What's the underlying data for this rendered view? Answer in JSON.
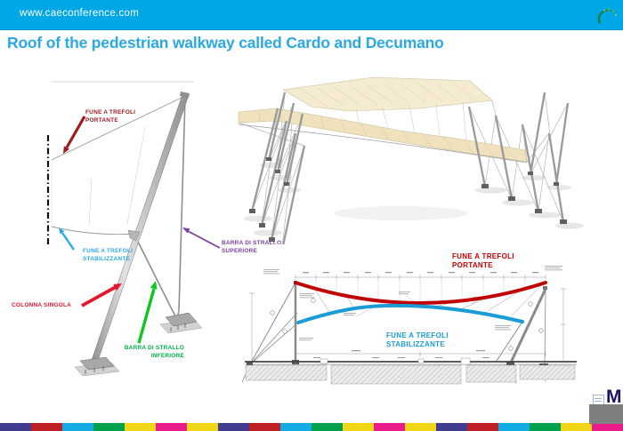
{
  "header": {
    "url": "www.caeconference.com",
    "bar_color": "#00A7E7",
    "logo": "green-swirl-leaf"
  },
  "title": {
    "text": "Roof of the pedestrian walkway called Cardo and Decumano",
    "color": "#2AA9E1"
  },
  "column_diagram": {
    "labels": {
      "fune_trefoli_portante": {
        "line1": "FUNE A TREFOLI",
        "line2": "PORTANTE",
        "color": "#9C1C20"
      },
      "fune_trefoli_stabilizzante": {
        "line1": "FUNE A TREFOLI",
        "line2": "STABILIZZANTE",
        "color": "#2BA9E0"
      },
      "colonna_singola": {
        "text": "COLONNA SINGOLA",
        "color": "#E4172E"
      },
      "barra_di_strallo_inferiore": {
        "line1": "BARRA DI STRALLO",
        "line2": "INFERIORE",
        "color": "#00B14C"
      },
      "barra_di_strallo_superiore": {
        "line1": "BARRA DI STRALLO",
        "line2": "SUPERIORE",
        "color": "#7A3FA3"
      }
    }
  },
  "section_drawing": {
    "labels": {
      "fune_trefoli_portante": {
        "line1": "FUNE A TREFOLI",
        "line2": "PORTANTE",
        "color": "#C00000"
      },
      "fune_trefoli_stabilizzante": {
        "line1": "FUNE A TREFOLI",
        "line2": "STABILIZZANTE",
        "color": "#1B9CD6"
      }
    },
    "cable_colors": {
      "portante": "#C00000",
      "stabilizzante": "#1B9CD6"
    }
  },
  "footer": {
    "stripe_colors": [
      "#413C8F",
      "#BE2026",
      "#12ABE3",
      "#00A14E",
      "#EFD616",
      "#EA1B8D",
      "#EFD616",
      "#413C8F",
      "#BE2026",
      "#12ABE3",
      "#00A14E",
      "#EFD616",
      "#EA1B8D",
      "#EFD616",
      "#413C8F",
      "#BE2026",
      "#12ABE3",
      "#00A14E",
      "#EFD616",
      "#EA1B8D"
    ]
  },
  "corner_logo": {
    "letter": "M"
  }
}
